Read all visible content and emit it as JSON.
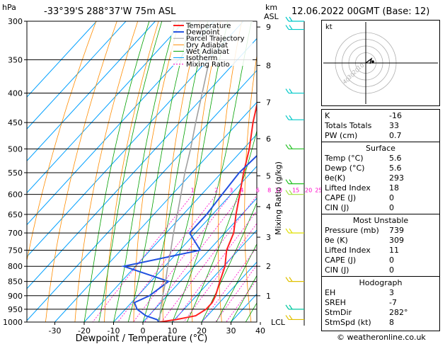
{
  "header": {
    "hpa_label": "hPa",
    "location": "-33°39'S 288°37'W 75m ASL",
    "km_label": "km",
    "asl_label": "ASL",
    "datetime": "12.06.2022 00GMT (Base: 12)"
  },
  "legend": {
    "items": [
      {
        "label": "Temperature",
        "color": "#ff2020"
      },
      {
        "label": "Dewpoint",
        "color": "#2050e0"
      },
      {
        "label": "Parcel Trajectory",
        "color": "#a0a0a0"
      },
      {
        "label": "Dry Adiabat",
        "color": "#ff8c00"
      },
      {
        "label": "Wet Adiabat",
        "color": "#00a000"
      },
      {
        "label": "Isotherm",
        "color": "#00a0ff"
      },
      {
        "label": "Mixing Ratio",
        "color": "#ff00c8"
      }
    ]
  },
  "chart_data": {
    "type": "line",
    "title": "-33°39'S 288°37'W 75m ASL",
    "xlabel": "Dewpoint / Temperature (°C)",
    "ylabel": "hPa",
    "right_ylabel": "Mixing Ratio (g/kg)",
    "xlim": [
      -35,
      40
    ],
    "pressure_range": [
      1000,
      300
    ],
    "pressure_levels": [
      300,
      350,
      400,
      450,
      500,
      550,
      600,
      650,
      700,
      750,
      800,
      850,
      900,
      950,
      1000
    ],
    "x_ticks": [
      -30,
      -20,
      -10,
      0,
      10,
      20,
      30,
      40
    ],
    "km_levels": [
      {
        "km": "9",
        "p": 307
      },
      {
        "km": "8",
        "p": 358
      },
      {
        "km": "7",
        "p": 415
      },
      {
        "km": "6",
        "p": 480
      },
      {
        "km": "5",
        "p": 557
      },
      {
        "km": "4",
        "p": 630
      },
      {
        "km": "3",
        "p": 712
      },
      {
        "km": "2",
        "p": 800
      },
      {
        "km": "1",
        "p": 900
      }
    ],
    "lcl_label": "LCL",
    "mixing_ratio_labels": [
      "1",
      "2",
      "3",
      "4",
      "6",
      "8",
      "10",
      "15",
      "20",
      "25"
    ],
    "series": [
      {
        "name": "Temperature",
        "color": "#ff2020",
        "points": [
          [
            1000,
            5.6
          ],
          [
            990,
            10.5
          ],
          [
            975,
            16
          ],
          [
            950,
            17.5
          ],
          [
            925,
            17.5
          ],
          [
            900,
            16.5
          ],
          [
            850,
            13.5
          ],
          [
            800,
            10.5
          ],
          [
            750,
            6
          ],
          [
            700,
            3
          ],
          [
            650,
            -2
          ],
          [
            600,
            -7
          ],
          [
            550,
            -12.5
          ],
          [
            500,
            -18
          ],
          [
            450,
            -25
          ],
          [
            400,
            -32
          ],
          [
            350,
            -40
          ],
          [
            300,
            -49
          ]
        ]
      },
      {
        "name": "Dewpoint",
        "color": "#2050e0",
        "points": [
          [
            1000,
            5.6
          ],
          [
            990,
            4
          ],
          [
            975,
            -1
          ],
          [
            950,
            -6
          ],
          [
            925,
            -9
          ],
          [
            900,
            -6
          ],
          [
            850,
            -4
          ],
          [
            800,
            -24
          ],
          [
            750,
            -3
          ],
          [
            700,
            -12
          ],
          [
            650,
            -12
          ],
          [
            600,
            -13
          ],
          [
            550,
            -14
          ],
          [
            500,
            -13
          ],
          [
            450,
            -16
          ],
          [
            400,
            -21
          ],
          [
            350,
            -34
          ],
          [
            300,
            -49
          ]
        ]
      },
      {
        "name": "Parcel Trajectory",
        "color": "#a0a0a0",
        "points": [
          [
            1000,
            5.6
          ],
          [
            950,
            2
          ],
          [
            900,
            -1.5
          ],
          [
            850,
            -5
          ],
          [
            800,
            -9
          ],
          [
            750,
            -13
          ],
          [
            700,
            -17.5
          ],
          [
            650,
            -22
          ],
          [
            600,
            -27
          ],
          [
            550,
            -32.5
          ],
          [
            500,
            -38
          ],
          [
            450,
            -44.5
          ],
          [
            400,
            -51.5
          ],
          [
            350,
            -59.5
          ],
          [
            300,
            -68
          ]
        ]
      }
    ],
    "wind_barbs": [
      {
        "p": 300,
        "color": "#00c8c8"
      },
      {
        "p": 310,
        "color": "#00c8c8"
      },
      {
        "p": 400,
        "color": "#00c8c8"
      },
      {
        "p": 445,
        "color": "#00c8c8"
      },
      {
        "p": 500,
        "color": "#20c020"
      },
      {
        "p": 575,
        "color": "#20c020"
      },
      {
        "p": 600,
        "color": "#a0e040"
      },
      {
        "p": 700,
        "color": "#e0e000"
      },
      {
        "p": 850,
        "color": "#e0c000"
      },
      {
        "p": 950,
        "color": "#00c8a0"
      },
      {
        "p": 990,
        "color": "#e0c000"
      }
    ]
  },
  "hodograph": {
    "label": "kt",
    "ring_labels": [
      "10",
      "20",
      "30",
      "40"
    ]
  },
  "indices": {
    "K_label": "K",
    "K_value": "-16",
    "TT_label": "Totals Totals",
    "TT_value": "33",
    "PW_label": "PW (cm)",
    "PW_value": "0.7"
  },
  "surface": {
    "title": "Surface",
    "temp_label": "Temp (°C)",
    "temp_value": "5.6",
    "dewp_label": "Dewp (°C)",
    "dewp_value": "5.6",
    "thetae_label": "θe(K)",
    "thetae_value": "293",
    "li_label": "Lifted Index",
    "li_value": "18",
    "cape_label": "CAPE (J)",
    "cape_value": "0",
    "cin_label": "CIN (J)",
    "cin_value": "0"
  },
  "most_unstable": {
    "title": "Most Unstable",
    "pressure_label": "Pressure (mb)",
    "pressure_value": "739",
    "thetae_label": "θe (K)",
    "thetae_value": "309",
    "li_label": "Lifted Index",
    "li_value": "11",
    "cape_label": "CAPE (J)",
    "cape_value": "0",
    "cin_label": "CIN (J)",
    "cin_value": "0"
  },
  "hodo_stats": {
    "title": "Hodograph",
    "eh_label": "EH",
    "eh_value": "3",
    "sreh_label": "SREH",
    "sreh_value": "-7",
    "stmdir_label": "StmDir",
    "stmdir_value": "282°",
    "stmspd_label": "StmSpd (kt)",
    "stmspd_value": "8"
  },
  "footer": {
    "copyright": "© weatheronline.co.uk"
  }
}
